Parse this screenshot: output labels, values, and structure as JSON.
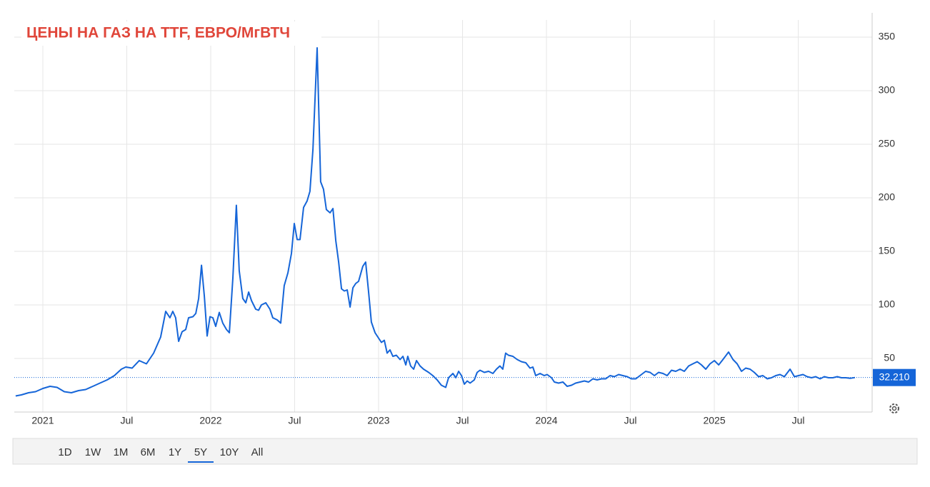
{
  "chart_data": {
    "type": "line",
    "title": "ЦЕНЫ НА ГАЗ НА TTF, ЕВРО/МгВТЧ",
    "color": "#1565d8",
    "grid": true,
    "xlim": [
      2020.83,
      2025.94
    ],
    "xticks": [
      {
        "value": 2021,
        "label": "2021"
      },
      {
        "value": 2021.5,
        "label": "Jul"
      },
      {
        "value": 2022,
        "label": "2022"
      },
      {
        "value": 2022.5,
        "label": "Jul"
      },
      {
        "value": 2023,
        "label": "2023"
      },
      {
        "value": 2023.5,
        "label": "Jul"
      },
      {
        "value": 2024,
        "label": "2024"
      },
      {
        "value": 2024.5,
        "label": "Jul"
      },
      {
        "value": 2025,
        "label": "2025"
      },
      {
        "value": 2025.5,
        "label": "Jul"
      }
    ],
    "ylim": [
      0,
      366
    ],
    "yticks": [
      50,
      100,
      150,
      200,
      250,
      300,
      350
    ],
    "current": {
      "value": 32.21,
      "label": "32.210"
    },
    "range_buttons": [
      "1D",
      "1W",
      "1M",
      "6M",
      "1Y",
      "5Y",
      "10Y",
      "All"
    ],
    "selected_range": "5Y",
    "x": [
      2020.838,
      2020.872,
      2020.915,
      2020.957,
      2021.0,
      2021.043,
      2021.085,
      2021.128,
      2021.17,
      2021.213,
      2021.255,
      2021.298,
      2021.34,
      2021.383,
      2021.426,
      2021.468,
      2021.494,
      2021.532,
      2021.574,
      2021.617,
      2021.66,
      2021.702,
      2021.732,
      2021.757,
      2021.774,
      2021.791,
      2021.809,
      2021.83,
      2021.851,
      2021.868,
      2021.894,
      2021.911,
      2021.928,
      2021.945,
      2021.962,
      2021.979,
      2021.996,
      2022.013,
      2022.03,
      2022.051,
      2022.072,
      2022.094,
      2022.111,
      2022.132,
      2022.153,
      2022.17,
      2022.191,
      2022.209,
      2022.226,
      2022.243,
      2022.268,
      2022.285,
      2022.302,
      2022.328,
      2022.353,
      2022.37,
      2022.396,
      2022.417,
      2022.438,
      2022.46,
      2022.481,
      2022.498,
      2022.515,
      2022.532,
      2022.553,
      2022.574,
      2022.591,
      2022.609,
      2022.634,
      2022.655,
      2022.672,
      2022.689,
      2022.711,
      2022.728,
      2022.745,
      2022.762,
      2022.779,
      2022.796,
      2022.813,
      2022.83,
      2022.847,
      2022.864,
      2022.881,
      2022.906,
      2022.923,
      2022.94,
      2022.957,
      2022.979,
      2023.0,
      2023.017,
      2023.034,
      2023.051,
      2023.068,
      2023.085,
      2023.106,
      2023.128,
      2023.145,
      2023.162,
      2023.174,
      2023.191,
      2023.209,
      2023.226,
      2023.247,
      2023.268,
      2023.298,
      2023.323,
      2023.349,
      2023.374,
      2023.4,
      2023.417,
      2023.443,
      2023.46,
      2023.477,
      2023.494,
      2023.511,
      2023.528,
      2023.545,
      2023.57,
      2023.587,
      2023.604,
      2023.63,
      2023.655,
      2023.681,
      2023.702,
      2023.723,
      2023.74,
      2023.757,
      2023.774,
      2023.8,
      2023.826,
      2023.851,
      2023.877,
      2023.902,
      2023.919,
      2023.936,
      2023.962,
      2023.987,
      2024.004,
      2024.03,
      2024.047,
      2024.072,
      2024.098,
      2024.123,
      2024.149,
      2024.174,
      2024.2,
      2024.226,
      2024.251,
      2024.277,
      2024.302,
      2024.328,
      2024.353,
      2024.379,
      2024.404,
      2024.43,
      2024.455,
      2024.481,
      2024.506,
      2024.532,
      2024.557,
      2024.591,
      2024.617,
      2024.643,
      2024.668,
      2024.694,
      2024.719,
      2024.745,
      2024.77,
      2024.796,
      2024.821,
      2024.847,
      2024.872,
      2024.898,
      2024.923,
      2024.949,
      2024.974,
      2025.0,
      2025.026,
      2025.051,
      2025.085,
      2025.111,
      2025.136,
      2025.162,
      2025.187,
      2025.213,
      2025.238,
      2025.264,
      2025.289,
      2025.315,
      2025.34,
      2025.366,
      2025.391,
      2025.417,
      2025.451,
      2025.477,
      2025.502,
      2025.528,
      2025.553,
      2025.579,
      2025.604,
      2025.63,
      2025.655,
      2025.681,
      2025.706,
      2025.732,
      2025.757,
      2025.783,
      2025.809,
      2025.838
    ],
    "values": [
      15,
      16,
      18,
      19,
      22,
      24,
      23,
      19,
      18,
      20,
      21,
      24,
      27,
      30,
      34,
      40,
      42,
      41,
      48,
      45,
      55,
      70,
      94,
      88,
      94,
      88,
      66,
      75,
      77,
      88,
      89,
      92,
      106,
      137,
      108,
      71,
      89,
      88,
      80,
      93,
      83,
      77,
      74,
      125,
      193,
      132,
      106,
      102,
      112,
      104,
      96,
      95,
      100,
      102,
      96,
      88,
      86,
      83,
      118,
      130,
      148,
      176,
      161,
      161,
      191,
      197,
      206,
      245,
      340,
      215,
      208,
      189,
      186,
      190,
      160,
      140,
      115,
      113,
      114,
      98,
      116,
      120,
      122,
      136,
      140,
      113,
      84,
      74,
      69,
      65,
      67,
      55,
      58,
      52,
      53,
      49,
      52,
      44,
      52,
      43,
      40,
      48,
      43,
      40,
      37,
      34,
      30,
      25,
      23,
      32,
      36,
      32,
      38,
      34,
      26,
      29,
      27,
      30,
      37,
      39,
      37,
      38,
      36,
      40,
      43,
      40,
      55,
      53,
      52,
      49,
      47,
      46,
      41,
      42,
      34,
      36,
      34,
      35,
      32,
      28,
      27,
      28,
      24,
      25,
      27,
      28,
      29,
      28,
      31,
      30,
      31,
      31,
      34,
      33,
      35,
      34,
      33,
      31,
      31,
      34,
      38,
      37,
      34,
      37,
      36,
      34,
      39,
      38,
      40,
      38,
      43,
      45,
      47,
      44,
      40,
      45,
      48,
      44,
      49,
      56,
      49,
      45,
      38,
      41,
      40,
      37,
      33,
      34,
      31,
      32,
      34,
      35,
      33,
      40,
      33,
      34,
      35,
      33,
      32,
      33,
      31,
      33,
      32,
      32,
      33,
      32,
      32,
      31.5,
      32.21
    ]
  }
}
